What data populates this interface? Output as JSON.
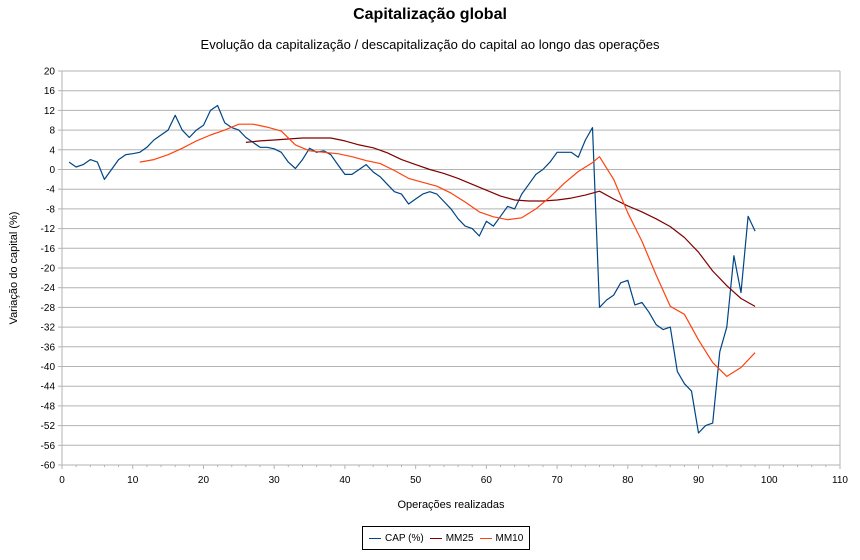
{
  "chart_data": {
    "type": "line",
    "title": "Capitalização global",
    "subtitle": "Evolução da capitalização / descapitalização do capital ao longo das operações",
    "xlabel": "Operações realizadas",
    "ylabel": "Variação do capital (%)",
    "xlim": [
      0,
      110
    ],
    "ylim": [
      -60,
      20
    ],
    "xticks": [
      0,
      10,
      20,
      30,
      40,
      50,
      60,
      70,
      80,
      90,
      100,
      110
    ],
    "yticks": [
      20,
      16,
      12,
      8,
      4,
      0,
      -4,
      -8,
      -12,
      -16,
      -20,
      -24,
      -28,
      -32,
      -36,
      -40,
      -44,
      -48,
      -52,
      -56,
      -60
    ],
    "grid": "horizontal",
    "legend": "bottom",
    "series": [
      {
        "name": "CAP (%)",
        "color": "#004586",
        "x": [
          1,
          2,
          3,
          4,
          5,
          6,
          7,
          8,
          9,
          10,
          11,
          12,
          13,
          14,
          15,
          16,
          17,
          18,
          19,
          20,
          21,
          22,
          23,
          24,
          25,
          26,
          27,
          28,
          29,
          30,
          31,
          32,
          33,
          34,
          35,
          36,
          37,
          38,
          39,
          40,
          41,
          42,
          43,
          44,
          45,
          46,
          47,
          48,
          49,
          50,
          51,
          52,
          53,
          54,
          55,
          56,
          57,
          58,
          59,
          60,
          61,
          62,
          63,
          64,
          65,
          66,
          67,
          68,
          69,
          70,
          71,
          72,
          73,
          74,
          75,
          76,
          77,
          78,
          79,
          80,
          81,
          82,
          83,
          84,
          85,
          86,
          87,
          88,
          89,
          90,
          91,
          92,
          93,
          94,
          95,
          96,
          97,
          98
        ],
        "y": [
          1.5,
          0.5,
          1,
          2,
          1.5,
          -2,
          0,
          2,
          3,
          3.2,
          3.5,
          4.5,
          6,
          7,
          8,
          11,
          8,
          6.5,
          8,
          9,
          12,
          13,
          9.5,
          8.5,
          8,
          6.5,
          5.5,
          4.5,
          4.5,
          4.2,
          3.5,
          1.5,
          0.2,
          2,
          4.3,
          3.5,
          3.8,
          3,
          1,
          -1,
          -1,
          0,
          1,
          -0.5,
          -1.5,
          -3,
          -4.5,
          -5,
          -7,
          -6,
          -5,
          -4.5,
          -5,
          -6.5,
          -8,
          -10,
          -11.5,
          -12,
          -13.5,
          -10.5,
          -11.5,
          -9.5,
          -7.5,
          -8,
          -5,
          -3,
          -1,
          0,
          1.5,
          3.5,
          3.5,
          3.5,
          2.5,
          6,
          8.5,
          -28,
          -26.5,
          -25.5,
          -23,
          -22.5,
          -27.5,
          -27,
          -29,
          -31.5,
          -32.5,
          -32,
          -41,
          -43.5,
          -45,
          -53.5,
          -52,
          -51.5,
          -37,
          -32,
          -17.5,
          -25,
          -9.5,
          -12.5
        ]
      },
      {
        "name": "MM25",
        "color": "#800000",
        "x": [
          26,
          28,
          30,
          32,
          34,
          36,
          38,
          40,
          42,
          44,
          46,
          48,
          50,
          52,
          54,
          56,
          58,
          60,
          62,
          64,
          66,
          68,
          70,
          72,
          74,
          76,
          78,
          80,
          82,
          84,
          86,
          88,
          90,
          92,
          94,
          96,
          98
        ],
        "y": [
          5.5,
          5.8,
          6,
          6.2,
          6.4,
          6.4,
          6.4,
          5.8,
          5,
          4.4,
          3.4,
          2,
          1,
          0,
          -0.8,
          -1.8,
          -3,
          -4.2,
          -5.4,
          -6.2,
          -6.4,
          -6.4,
          -6.2,
          -5.8,
          -5.2,
          -4.4,
          -6,
          -7.4,
          -8.6,
          -10,
          -11.6,
          -13.8,
          -16.8,
          -20.6,
          -23.6,
          -26.2,
          -27.8
        ]
      },
      {
        "name": "MM10",
        "color": "#ff420e",
        "x": [
          11,
          13,
          15,
          17,
          19,
          21,
          23,
          25,
          27,
          29,
          31,
          33,
          35,
          37,
          39,
          41,
          43,
          45,
          47,
          49,
          51,
          53,
          55,
          57,
          59,
          61,
          63,
          65,
          67,
          69,
          71,
          73,
          75,
          76,
          78,
          80,
          82,
          84,
          86,
          88,
          90,
          92,
          94,
          96,
          98
        ],
        "y": [
          1.5,
          2,
          3,
          4.3,
          5.8,
          7,
          8,
          9.2,
          9.2,
          8.6,
          7.8,
          5,
          3.8,
          3.5,
          3.2,
          2.6,
          1.8,
          1.2,
          -0.2,
          -1.8,
          -2.6,
          -3.4,
          -4.8,
          -6.6,
          -8.6,
          -9.6,
          -10.2,
          -9.8,
          -8,
          -5.6,
          -2.8,
          -0.4,
          1.4,
          2.6,
          -2,
          -8.8,
          -14.6,
          -21.4,
          -27.8,
          -29.4,
          -34.6,
          -39.2,
          -42,
          -40.2,
          -37.2
        ]
      }
    ]
  }
}
